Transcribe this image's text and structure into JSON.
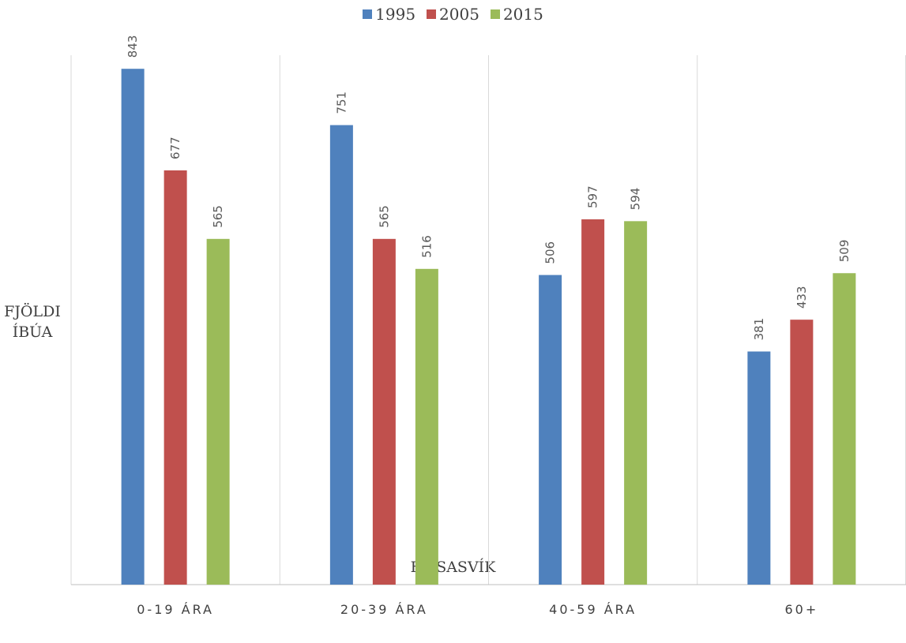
{
  "chart_data": {
    "type": "bar",
    "categories": [
      "0-19 ÁRA",
      "20-39 ÁRA",
      "40-59 ÁRA",
      "60+"
    ],
    "series": [
      {
        "name": "1995",
        "values": [
          843,
          751,
          506,
          381
        ],
        "color": "#4F81BD"
      },
      {
        "name": "2005",
        "values": [
          677,
          565,
          597,
          433
        ],
        "color": "#C0504D"
      },
      {
        "name": "2015",
        "values": [
          565,
          516,
          594,
          509
        ],
        "color": "#9BBB59"
      }
    ],
    "ylabel_lines": [
      "FJÖLDI",
      "ÍBÚA"
    ],
    "xlabel": "HÚSASVÍK",
    "ylim": [
      0,
      900
    ],
    "legend_position": "top",
    "grid": "vertical category separators",
    "show_data_labels": true
  }
}
